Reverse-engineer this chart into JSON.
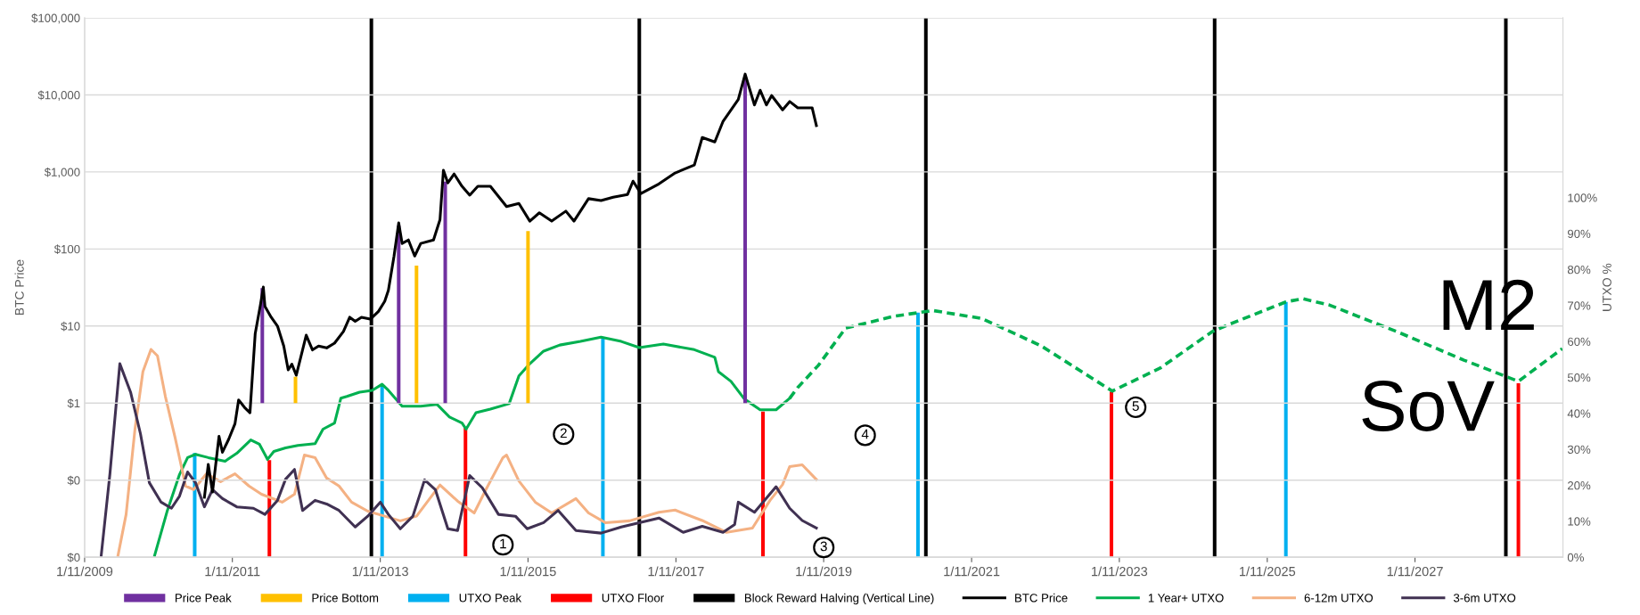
{
  "chart_data": {
    "type": "line",
    "ylabel": "BTC Price",
    "y2label": "UTXO %",
    "log": "y",
    "grid": "y",
    "legend": "bottom",
    "xlim": [
      "2009-01-11",
      "2029-01-11"
    ],
    "xticks": [
      {
        "value": "2009-01-11",
        "label": "1/11/2009"
      },
      {
        "value": "2011-01-11",
        "label": "1/11/2011"
      },
      {
        "value": "2013-01-11",
        "label": "1/11/2013"
      },
      {
        "value": "2015-01-11",
        "label": "1/11/2015"
      },
      {
        "value": "2017-01-11",
        "label": "1/11/2017"
      },
      {
        "value": "2019-01-11",
        "label": "1/11/2019"
      },
      {
        "value": "2021-01-11",
        "label": "1/11/2021"
      },
      {
        "value": "2023-01-11",
        "label": "1/11/2023"
      },
      {
        "value": "2025-01-11",
        "label": "1/11/2025"
      },
      {
        "value": "2027-01-11",
        "label": "1/11/2027"
      }
    ],
    "ylim": [
      0.01,
      100000
    ],
    "yticks": [
      {
        "value": 0.01,
        "label": "$0"
      },
      {
        "value": 0.1,
        "label": "$0"
      },
      {
        "value": 1,
        "label": "$1"
      },
      {
        "value": 10,
        "label": "$10"
      },
      {
        "value": 100,
        "label": "$100"
      },
      {
        "value": 1000,
        "label": "$1,000"
      },
      {
        "value": 10000,
        "label": "$10,000"
      },
      {
        "value": 100000,
        "label": "$100,000"
      }
    ],
    "y2lim": [
      0,
      150
    ],
    "y2ticks": [
      {
        "value": 0,
        "label": "0%"
      },
      {
        "value": 10,
        "label": "10%"
      },
      {
        "value": 20,
        "label": "20%"
      },
      {
        "value": 30,
        "label": "30%"
      },
      {
        "value": 40,
        "label": "40%"
      },
      {
        "value": 50,
        "label": "50%"
      },
      {
        "value": 60,
        "label": "60%"
      },
      {
        "value": 70,
        "label": "70%"
      },
      {
        "value": 80,
        "label": "80%"
      },
      {
        "value": 90,
        "label": "90%"
      },
      {
        "value": 100,
        "label": "100%"
      }
    ],
    "annotations": [
      "1",
      "2",
      "3",
      "4",
      "5",
      "M2",
      "SoV"
    ],
    "series": [
      {
        "name": "Price Peak",
        "type": "bar",
        "color": "#7030a0",
        "x": [
          "2011-06-08",
          "2013-04-12",
          "2013-11-28",
          "2017-12-19"
        ],
        "base": [
          1,
          1,
          1,
          1
        ],
        "values": [
          30,
          200,
          750,
          17000
        ]
      },
      {
        "name": "Price Bottom",
        "type": "bar",
        "color": "#ffc000",
        "x": [
          "2011-11-19",
          "2013-07-09",
          "2015-01-11"
        ],
        "base": [
          1,
          1,
          1
        ],
        "values": [
          1.2,
          60,
          170
        ]
      },
      {
        "name": "UTXO Peak",
        "type": "bar",
        "axis": "y2",
        "color": "#00b0f0",
        "x": [
          "2010-07-09",
          "2013-01-20",
          "2016-01-16",
          "2020-04-21",
          "2025-04-13"
        ],
        "values": [
          29,
          48,
          61,
          68,
          71
        ]
      },
      {
        "name": "UTXO Floor",
        "type": "bar",
        "axis": "y2",
        "color": "#ff0000",
        "x": [
          "2011-07-13",
          "2014-03-08",
          "2018-03-17",
          "2022-12-03",
          "2028-06-05"
        ],
        "values": [
          27,
          36,
          40.5,
          46,
          48.4
        ]
      },
      {
        "name": "Block Reward Halving (Vertical Line)",
        "type": "bar",
        "axis": "y2",
        "color": "#000000",
        "x": [
          "2012-11-28",
          "2016-07-14",
          "2020-05-30",
          "2024-04-26",
          "2028-04-04"
        ],
        "values": [
          150,
          150,
          150,
          150,
          150
        ]
      },
      {
        "name": "BTC Price",
        "color": "#000000",
        "x": [
          "2010-08-26",
          "2010-09-14",
          "2010-10-05",
          "2010-11-06",
          "2010-11-23",
          "2010-12-24",
          "2011-01-24",
          "2011-02-11",
          "2011-03-12",
          "2011-04-08",
          "2011-05-04",
          "2011-05-30",
          "2011-06-13",
          "2011-06-21",
          "2011-07-22",
          "2011-08-22",
          "2011-09-22",
          "2011-10-14",
          "2011-11-01",
          "2011-11-23",
          "2011-12-24",
          "2012-01-11",
          "2012-02-11",
          "2012-03-12",
          "2012-04-21",
          "2012-05-30",
          "2012-07-13",
          "2012-08-13",
          "2012-09-09",
          "2012-10-10",
          "2012-11-23",
          "2013-01-02",
          "2013-02-02",
          "2013-02-20",
          "2013-03-20",
          "2013-04-12",
          "2013-04-29",
          "2013-05-30",
          "2013-06-30",
          "2013-07-30",
          "2013-10-01",
          "2013-11-02",
          "2013-11-19",
          "2013-12-11",
          "2014-01-11",
          "2014-02-19",
          "2014-03-29",
          "2014-05-08",
          "2014-07-09",
          "2014-09-27",
          "2014-11-27",
          "2015-01-20",
          "2015-03-08",
          "2015-05-08",
          "2015-07-17",
          "2015-08-26",
          "2015-11-06",
          "2016-01-07",
          "2016-03-07",
          "2016-05-17",
          "2016-06-13",
          "2016-07-22",
          "2016-10-19",
          "2017-01-07",
          "2017-04-12",
          "2017-05-21",
          "2017-07-22",
          "2017-09-01",
          "2017-11-15",
          "2017-12-19",
          "2018-02-03",
          "2018-03-03",
          "2018-04-03",
          "2018-04-29",
          "2018-06-22",
          "2018-07-27",
          "2018-09-05",
          "2018-11-15",
          "2018-12-06"
        ],
        "values": [
          0.06,
          0.16,
          0.07,
          0.37,
          0.23,
          0.34,
          0.54,
          1.1,
          0.88,
          0.75,
          8,
          19,
          32,
          18,
          13,
          10,
          5.5,
          2.7,
          3.2,
          2.3,
          4.9,
          7.6,
          4.9,
          5.5,
          5.2,
          6,
          8.5,
          13,
          11.5,
          13,
          12.3,
          15.5,
          21,
          29,
          81,
          218,
          118,
          131,
          81,
          118,
          131,
          240,
          1050,
          720,
          940,
          650,
          500,
          650,
          650,
          355,
          390,
          230,
          295,
          230,
          310,
          230,
          450,
          425,
          470,
          510,
          760,
          525,
          700,
          970,
          1230,
          2800,
          2450,
          4550,
          8700,
          18600,
          7400,
          11500,
          7400,
          9800,
          6400,
          8200,
          6800,
          6800,
          4000
        ]
      },
      {
        "name": "1 Year+ UTXO",
        "axis": "y2",
        "color": "#00b050",
        "x": [
          "2009-12-23",
          "2010-02-24",
          "2010-04-25",
          "2010-06-04",
          "2010-07-13",
          "2010-09-14",
          "2010-12-06",
          "2011-02-02",
          "2011-04-12",
          "2011-05-25",
          "2011-07-04",
          "2011-08-04",
          "2011-10-01",
          "2011-12-01",
          "2012-02-24",
          "2012-04-03",
          "2012-05-30",
          "2012-06-30",
          "2012-07-30",
          "2012-10-01",
          "2012-12-02",
          "2013-01-20",
          "2013-02-20",
          "2013-04-29",
          "2013-07-30",
          "2013-10-18",
          "2013-12-19",
          "2014-02-19",
          "2014-03-11",
          "2014-04-29",
          "2014-07-09",
          "2014-10-10",
          "2014-11-27",
          "2015-01-20",
          "2015-03-29",
          "2015-06-17",
          "2015-09-27",
          "2016-01-07",
          "2016-04-16",
          "2016-07-14",
          "2016-11-10",
          "2017-04-12",
          "2017-07-22",
          "2017-08-09",
          "2017-10-10",
          "2017-12-15",
          "2018-03-03",
          "2018-05-21",
          "2018-07-27"
        ],
        "values": [
          0.5,
          13,
          23,
          27.7,
          28.6,
          27.7,
          26.7,
          28.9,
          32.6,
          31.4,
          27.2,
          29.4,
          30.4,
          31.1,
          31.6,
          35.6,
          37.3,
          44.2,
          44.7,
          45.9,
          46.4,
          48.1,
          46.4,
          42,
          42,
          42.5,
          39,
          37.3,
          35.6,
          40.2,
          41.2,
          42.7,
          50.4,
          53.8,
          57.3,
          59,
          60,
          61.2,
          60,
          58.3,
          59.3,
          57.7,
          55.6,
          51.6,
          48.9,
          44,
          41,
          41,
          44.2
        ]
      },
      {
        "axis": "y2",
        "color": "#00b050",
        "line_style": "dashed",
        "x": [
          "2018-07-27",
          "2018-09-05",
          "2018-12-15",
          "2019-03-03",
          "2019-04-29",
          "2019-12-24",
          "2020-07-04",
          "2021-03-01",
          "2021-12-20",
          "2022-12-07",
          "2023-08-01",
          "2024-04-13",
          "2024-07-05",
          "2025-04-13",
          "2025-07-05",
          "2025-11-15",
          "2026-10-15",
          "2027-09-10",
          "2028-06-05",
          "2029-01-08"
        ],
        "values": [
          44.2,
          47.2,
          53.3,
          59.3,
          63.7,
          67,
          68.6,
          66.4,
          58.8,
          46.2,
          52.6,
          62.7,
          64.7,
          71,
          71.9,
          70.1,
          62.7,
          54.8,
          48.9,
          58
        ]
      },
      {
        "name": "6-12m UTXO",
        "axis": "y2",
        "color": "#f4b183",
        "x": [
          "2009-06-25",
          "2009-08-04",
          "2009-09-17",
          "2009-10-26",
          "2009-12-05",
          "2010-01-06",
          "2010-02-14",
          "2010-04-03",
          "2010-05-25",
          "2010-07-04",
          "2010-09-05",
          "2010-11-14",
          "2011-01-24",
          "2011-04-03",
          "2011-06-04",
          "2011-09-14",
          "2011-11-14",
          "2012-01-02",
          "2012-02-24",
          "2012-04-21",
          "2012-06-21",
          "2012-08-22",
          "2012-11-10",
          "2013-02-02",
          "2013-04-20",
          "2013-07-09",
          "2013-11-02",
          "2014-01-28",
          "2014-04-20",
          "2014-06-17",
          "2014-09-09",
          "2014-09-27",
          "2014-11-27",
          "2015-02-16",
          "2015-05-08",
          "2015-09-05",
          "2015-11-06",
          "2016-01-28",
          "2016-05-26",
          "2016-10-19",
          "2017-01-07",
          "2017-05-21",
          "2017-09-18",
          "2018-01-24",
          "2018-04-21",
          "2018-06-22",
          "2018-07-27",
          "2018-09-27",
          "2018-12-06"
        ],
        "values": [
          0.5,
          11.9,
          35.7,
          51.6,
          57.8,
          56,
          44.7,
          33.3,
          19.8,
          18.8,
          23.2,
          21,
          23.2,
          19.8,
          17.5,
          15.3,
          17.5,
          28.4,
          27.7,
          22,
          19.8,
          15.3,
          12.8,
          11.4,
          10.1,
          11.4,
          20.1,
          15.6,
          12.3,
          18.8,
          27.7,
          28.4,
          21.2,
          15.3,
          12.3,
          16.3,
          12.3,
          9.6,
          10.1,
          12.5,
          13.1,
          10.2,
          6.9,
          8.1,
          15.8,
          20.2,
          25.2,
          25.7,
          21.6
        ]
      },
      {
        "name": "3-6m UTXO",
        "axis": "y2",
        "color": "#403152",
        "x": [
          "2009-04-03",
          "2009-05-16",
          "2009-07-04",
          "2009-08-26",
          "2009-10-14",
          "2009-11-27",
          "2010-01-24",
          "2010-03-16",
          "2010-04-25",
          "2010-06-04",
          "2010-07-13",
          "2010-08-26",
          "2010-10-05",
          "2010-11-23",
          "2011-02-02",
          "2011-04-25",
          "2011-06-21",
          "2011-08-22",
          "2011-10-01",
          "2011-11-14",
          "2011-12-24",
          "2012-02-24",
          "2012-04-21",
          "2012-06-21",
          "2012-09-09",
          "2012-11-10",
          "2013-01-11",
          "2013-02-20",
          "2013-04-20",
          "2013-06-21",
          "2013-08-18",
          "2013-10-10",
          "2013-12-11",
          "2014-01-28",
          "2014-03-29",
          "2014-05-30",
          "2014-08-18",
          "2014-11-10",
          "2015-01-07",
          "2015-03-29",
          "2015-06-09",
          "2015-09-05",
          "2016-01-07",
          "2016-04-16",
          "2016-10-19",
          "2017-02-16",
          "2017-05-21",
          "2017-09-01",
          "2017-10-28",
          "2017-11-15",
          "2018-02-03",
          "2018-05-21",
          "2018-07-27",
          "2018-09-27",
          "2018-12-06"
        ],
        "values": [
          0.5,
          23.2,
          53.8,
          45.9,
          34.3,
          20.7,
          15.3,
          13.6,
          17,
          23.7,
          20.7,
          14,
          18.8,
          16.3,
          14,
          13.6,
          11.9,
          15.8,
          21.7,
          24.4,
          13,
          15.8,
          14.8,
          13,
          8.4,
          11.4,
          15.3,
          11.9,
          7.9,
          11.4,
          21.5,
          18.8,
          7.9,
          7.4,
          22.7,
          19.3,
          11.9,
          11.4,
          7.9,
          9.6,
          13,
          7.4,
          6.7,
          8.4,
          10.9,
          6.9,
          8.6,
          6.9,
          9.1,
          15.3,
          12.5,
          19.6,
          13.6,
          10.2,
          8.1
        ]
      }
    ]
  }
}
